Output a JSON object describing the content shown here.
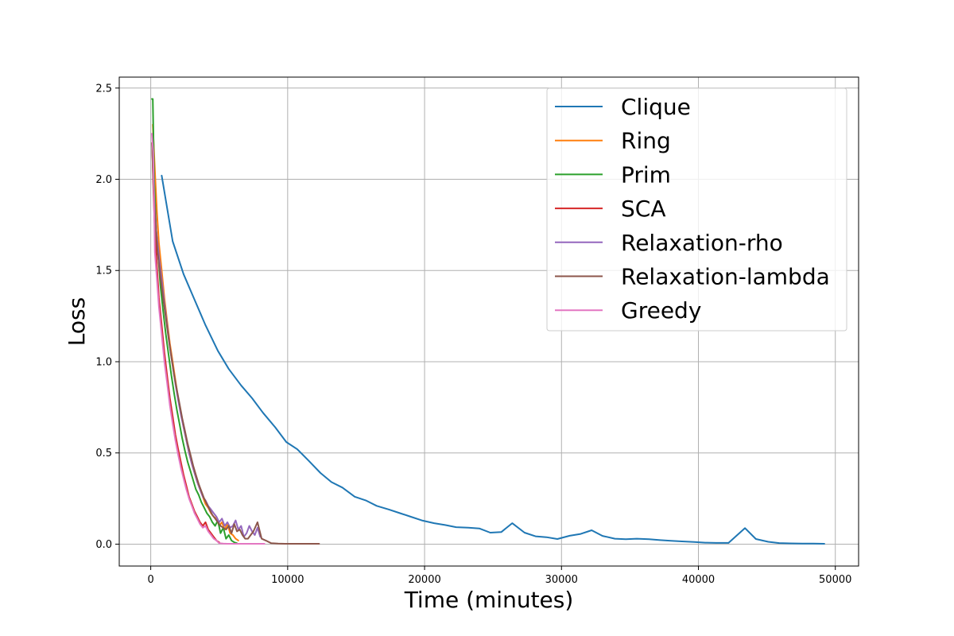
{
  "chart_data": {
    "type": "line",
    "title": "",
    "xlabel": "Time (minutes)",
    "ylabel": "Loss",
    "xlim": [
      -2300,
      51700
    ],
    "ylim": [
      -0.12,
      2.56
    ],
    "xticks": [
      0,
      10000,
      20000,
      30000,
      40000,
      50000
    ],
    "yticks": [
      0.0,
      0.5,
      1.0,
      1.5,
      2.0,
      2.5
    ],
    "grid": true,
    "legend_position": "top-right",
    "series": [
      {
        "name": "Clique",
        "color": "#1f77b4",
        "x": [
          800,
          1600,
          2400,
          3200,
          4000,
          4900,
          5700,
          6600,
          7400,
          8200,
          9100,
          9900,
          10700,
          11500,
          12400,
          13200,
          14000,
          14900,
          15700,
          16500,
          17400,
          18200,
          19000,
          19800,
          20700,
          21500,
          22300,
          23200,
          24000,
          24800,
          25600,
          26400,
          27300,
          28100,
          28900,
          29700,
          30600,
          31400,
          32200,
          33000,
          33900,
          34700,
          35500,
          36400,
          37200,
          38000,
          38800,
          39700,
          40500,
          41300,
          42200,
          43400,
          44200,
          45100,
          45900,
          46700,
          47600,
          48400,
          49200
        ],
        "y": [
          2.02,
          1.66,
          1.48,
          1.34,
          1.2,
          1.06,
          0.96,
          0.87,
          0.8,
          0.72,
          0.64,
          0.56,
          0.52,
          0.46,
          0.39,
          0.34,
          0.31,
          0.26,
          0.24,
          0.21,
          0.19,
          0.17,
          0.15,
          0.13,
          0.115,
          0.105,
          0.093,
          0.09,
          0.086,
          0.063,
          0.066,
          0.115,
          0.063,
          0.043,
          0.038,
          0.028,
          0.046,
          0.056,
          0.076,
          0.045,
          0.03,
          0.027,
          0.03,
          0.027,
          0.022,
          0.018,
          0.015,
          0.012,
          0.008,
          0.007,
          0.007,
          0.088,
          0.028,
          0.013,
          0.006,
          0.004,
          0.003,
          0.003,
          0.002
        ]
      },
      {
        "name": "Ring",
        "color": "#ff7f0e",
        "x": [
          150,
          300,
          450,
          600,
          800,
          1000,
          1200,
          1400,
          1600,
          1800,
          2000,
          2200,
          2400,
          2600,
          2800,
          3000,
          3200,
          3400,
          3600,
          3800,
          4000,
          4200,
          4400,
          4600,
          4800,
          5000,
          5200,
          5400,
          5600,
          5800,
          6000,
          6200,
          6400
        ],
        "y": [
          2.3,
          2.05,
          1.82,
          1.65,
          1.5,
          1.35,
          1.22,
          1.1,
          1.0,
          0.9,
          0.8,
          0.72,
          0.64,
          0.57,
          0.5,
          0.44,
          0.39,
          0.34,
          0.3,
          0.26,
          0.22,
          0.2,
          0.17,
          0.15,
          0.14,
          0.1,
          0.12,
          0.08,
          0.11,
          0.06,
          0.05,
          0.03,
          0.02
        ]
      },
      {
        "name": "Prim",
        "color": "#2ca02c",
        "x": [
          80,
          150,
          250,
          400,
          550,
          700,
          900,
          1100,
          1300,
          1500,
          1700,
          1900,
          2100,
          2300,
          2500,
          2700,
          2900,
          3100,
          3300,
          3500,
          3700,
          3900,
          4100,
          4300,
          4500,
          4700,
          4900,
          5100,
          5300,
          5500,
          5700,
          5900,
          6100,
          6300
        ],
        "y": [
          2.44,
          2.44,
          2.0,
          1.72,
          1.58,
          1.42,
          1.28,
          1.15,
          1.04,
          0.93,
          0.83,
          0.74,
          0.66,
          0.58,
          0.51,
          0.45,
          0.4,
          0.35,
          0.3,
          0.27,
          0.23,
          0.2,
          0.17,
          0.15,
          0.12,
          0.1,
          0.13,
          0.06,
          0.09,
          0.03,
          0.05,
          0.02,
          0.01,
          0.005
        ]
      },
      {
        "name": "SCA",
        "color": "#d62728",
        "x": [
          100,
          200,
          300,
          450,
          600,
          800,
          1000,
          1200,
          1400,
          1600,
          1800,
          2000,
          2200,
          2400,
          2600,
          2800,
          3000,
          3200,
          3400,
          3600,
          3800,
          4000,
          4200,
          4400,
          4600,
          4800,
          5000
        ],
        "y": [
          2.2,
          1.92,
          1.72,
          1.52,
          1.35,
          1.2,
          1.05,
          0.92,
          0.8,
          0.7,
          0.6,
          0.52,
          0.45,
          0.38,
          0.32,
          0.26,
          0.22,
          0.18,
          0.15,
          0.12,
          0.1,
          0.12,
          0.08,
          0.06,
          0.04,
          0.02,
          0.01
        ]
      },
      {
        "name": "Relaxation-rho",
        "color": "#9467bd",
        "x": [
          120,
          250,
          400,
          600,
          800,
          1000,
          1200,
          1400,
          1600,
          1800,
          2000,
          2200,
          2400,
          2600,
          2800,
          3000,
          3200,
          3400,
          3600,
          3800,
          4000,
          4200,
          4400,
          4600,
          4800,
          5000,
          5200,
          5400,
          5600,
          5800,
          6000,
          6200,
          6400,
          6600,
          6800,
          7000,
          7200,
          7400,
          7600,
          7800,
          8000
        ],
        "y": [
          2.15,
          1.9,
          1.72,
          1.58,
          1.45,
          1.32,
          1.2,
          1.08,
          0.98,
          0.88,
          0.79,
          0.71,
          0.64,
          0.57,
          0.5,
          0.44,
          0.39,
          0.34,
          0.3,
          0.26,
          0.24,
          0.21,
          0.19,
          0.17,
          0.15,
          0.12,
          0.14,
          0.1,
          0.12,
          0.09,
          0.1,
          0.13,
          0.08,
          0.1,
          0.04,
          0.06,
          0.1,
          0.07,
          0.05,
          0.09,
          0.04
        ]
      },
      {
        "name": "Relaxation-lambda",
        "color": "#8c564b",
        "x": [
          100,
          200,
          350,
          500,
          700,
          900,
          1100,
          1300,
          1500,
          1700,
          1900,
          2100,
          2300,
          2500,
          2700,
          2900,
          3100,
          3300,
          3500,
          3700,
          3900,
          4100,
          4300,
          4500,
          4700,
          4900,
          5100,
          5300,
          5500,
          5700,
          5900,
          6100,
          6300,
          6500,
          6700,
          6900,
          7100,
          7300,
          7500,
          7800,
          8100,
          8400,
          8800,
          9300,
          9800,
          10300,
          10800,
          11300,
          11800,
          12300
        ],
        "y": [
          2.2,
          1.95,
          1.75,
          1.6,
          1.47,
          1.35,
          1.24,
          1.13,
          1.03,
          0.93,
          0.85,
          0.77,
          0.69,
          0.62,
          0.55,
          0.49,
          0.43,
          0.38,
          0.33,
          0.29,
          0.25,
          0.22,
          0.19,
          0.16,
          0.14,
          0.12,
          0.1,
          0.09,
          0.08,
          0.1,
          0.06,
          0.11,
          0.07,
          0.08,
          0.05,
          0.03,
          0.03,
          0.05,
          0.07,
          0.12,
          0.03,
          0.02,
          0.005,
          0.003,
          0.002,
          0.002,
          0.002,
          0.002,
          0.002,
          0.002
        ]
      },
      {
        "name": "Greedy",
        "color": "#e377c2",
        "x": [
          80,
          180,
          300,
          450,
          600,
          800,
          1000,
          1200,
          1400,
          1600,
          1800,
          2000,
          2200,
          2400,
          2600,
          2800,
          3000,
          3200,
          3400,
          3600,
          3800,
          4000,
          4200,
          4400,
          4600,
          4800,
          5000,
          5300,
          5600,
          6000,
          6500,
          7000,
          7500,
          8000,
          8300
        ],
        "y": [
          2.25,
          2.15,
          1.6,
          1.45,
          1.3,
          1.15,
          1.0,
          0.88,
          0.76,
          0.66,
          0.57,
          0.49,
          0.42,
          0.36,
          0.3,
          0.25,
          0.21,
          0.17,
          0.14,
          0.11,
          0.09,
          0.1,
          0.07,
          0.05,
          0.03,
          0.02,
          0.005,
          0.003,
          0.002,
          0.002,
          0.002,
          0.002,
          0.002,
          0.002,
          0.002
        ]
      }
    ]
  }
}
